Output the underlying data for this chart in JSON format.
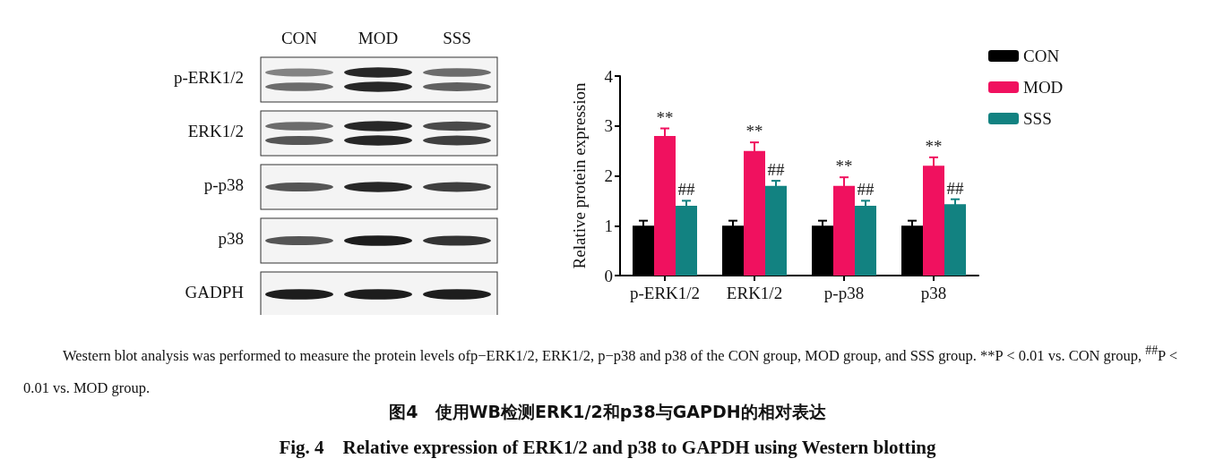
{
  "chart_data": {
    "type": "bar",
    "title": "图4　使用WB检测ERK1/2和p38与GAPDH的相对表达",
    "subtitle": "Fig. 4　Relative expression of ERK1/2 and p38 to GAPDH using Western blotting",
    "ylabel": "Relative protein expression",
    "categories": [
      "p-ERK1/2",
      "ERK1/2",
      "p-p38",
      "p38"
    ],
    "series": [
      {
        "name": "CON",
        "color": "#000000",
        "values": [
          1,
          1,
          1,
          1
        ],
        "errors": [
          0.1,
          0.1,
          0.1,
          0.1
        ]
      },
      {
        "name": "MOD",
        "color": "#f0115f",
        "values": [
          2.8,
          2.5,
          1.8,
          2.2
        ],
        "errors": [
          0.15,
          0.17,
          0.17,
          0.17
        ],
        "value_labels": [
          "**",
          "**",
          "**",
          "**"
        ]
      },
      {
        "name": "SSS",
        "color": "#128281",
        "values": [
          1.4,
          1.8,
          1.4,
          1.43
        ],
        "errors": [
          0.1,
          0.1,
          0.1,
          0.1
        ],
        "value_labels": [
          "##",
          "##",
          "##",
          "##"
        ]
      }
    ],
    "ylim": [
      0,
      4
    ],
    "yticks": [
      0,
      1,
      2,
      3,
      4
    ],
    "grid": false,
    "legend": "top right",
    "annotations": [
      "CON",
      "MOD",
      "SSS",
      "p-ERK1/2",
      "ERK1/2",
      "p-p38",
      "p38",
      "GADPH",
      "Western blot analysis was performed to measure the protein levels ofp−ERK1/2, ERK1/2, p−p38 and p38 of the CON group, MOD group, and SSS group. **P < 0.01 vs. CON group, $^{##}$P < 0.01 vs. MOD group."
    ]
  }
}
